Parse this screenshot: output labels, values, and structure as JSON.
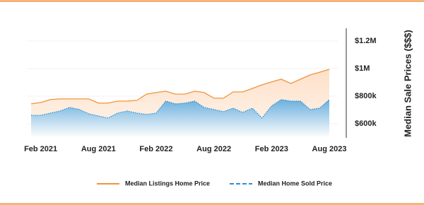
{
  "chart_data": {
    "type": "line",
    "y_axis_label": "Median Sale Prices ($$$)",
    "categories": [
      null,
      "Feb 2021",
      null,
      null,
      null,
      null,
      null,
      "Aug 2021",
      null,
      null,
      null,
      null,
      null,
      "Feb 2022",
      null,
      null,
      null,
      null,
      null,
      "Aug 2022",
      null,
      null,
      null,
      null,
      null,
      "Feb 2023",
      null,
      null,
      null,
      null,
      null,
      "Aug 2023"
    ],
    "series": [
      {
        "name": "Median Listings Home Price",
        "color": "#f0943c",
        "fill": "#fde3cf",
        "style": "solid",
        "values": [
          744000,
          754000,
          775000,
          780000,
          780000,
          780000,
          780000,
          749000,
          749000,
          764000,
          764000,
          769000,
          815000,
          826000,
          836000,
          815000,
          815000,
          836000,
          826000,
          785000,
          785000,
          831000,
          831000,
          856000,
          882000,
          903000,
          923000,
          892000,
          923000,
          954000,
          974000,
          995000
        ]
      },
      {
        "name": "Median Home Sold Price",
        "color": "#2f8fcf",
        "fill": "#7fbde6",
        "style": "dashed",
        "values": [
          661000,
          661000,
          677000,
          692000,
          718000,
          703000,
          672000,
          656000,
          641000,
          677000,
          692000,
          677000,
          667000,
          677000,
          764000,
          744000,
          749000,
          764000,
          718000,
          703000,
          687000,
          713000,
          682000,
          713000,
          641000,
          728000,
          775000,
          764000,
          764000,
          703000,
          713000,
          775000
        ]
      }
    ],
    "ylim": [
      500000,
      1300000
    ],
    "yticks": [
      {
        "value": 600000,
        "label": "$600k"
      },
      {
        "value": 800000,
        "label": "$800k"
      },
      {
        "value": 1000000,
        "label": "$1M"
      },
      {
        "value": 1200000,
        "label": "$1.2M"
      }
    ],
    "grid": true
  }
}
